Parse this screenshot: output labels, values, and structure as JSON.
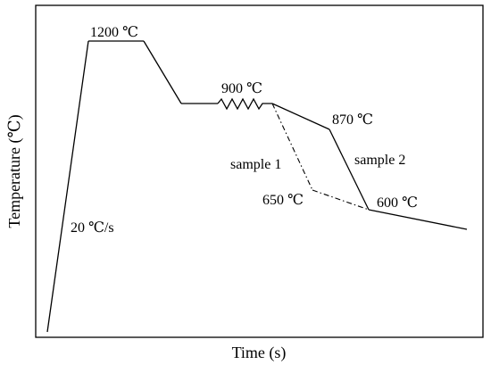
{
  "figure": {
    "xlabel": "Time (s)",
    "ylabel": "Temperature (℃)",
    "annotations": {
      "heating_rate": "20 ℃/s",
      "soak_temp": "1200 ℃",
      "deformation_temp": "900 ℃",
      "sample2_finish_temp": "870 ℃",
      "sample1_label": "sample 1",
      "sample2_label": "sample 2",
      "sample1_coil_temp": "650 ℃",
      "sample2_coil_temp": "600 ℃"
    },
    "colors": {
      "line": "#000000",
      "frame": "#000000",
      "background": "#ffffff"
    },
    "line_styles": {
      "sample1": "dash-dot",
      "sample2": "solid",
      "deformation": "zigzag"
    }
  }
}
